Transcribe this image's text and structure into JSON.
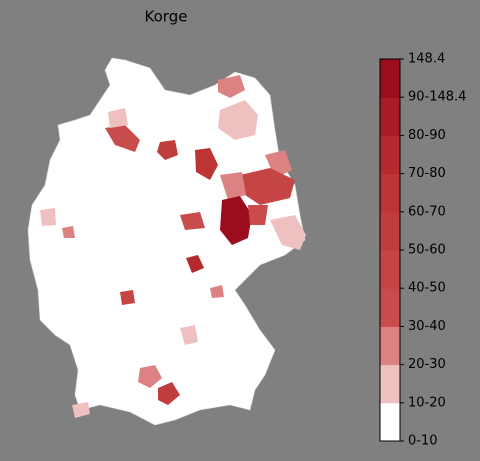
{
  "title": "Korge",
  "colorbar": {
    "labels": [
      "0-10",
      "10-20",
      "20-30",
      "30-40",
      "40-50",
      "50-60",
      "60-70",
      "70-80",
      "80-90",
      "90-148.4",
      "148.4"
    ],
    "colors": [
      "#ffffff",
      "#eec0c0",
      "#dc8282",
      "#c94c4c",
      "#c54444",
      "#c13c3c",
      "#bc3434",
      "#b52a2e",
      "#a91c26",
      "#9a0c1e"
    ]
  }
}
